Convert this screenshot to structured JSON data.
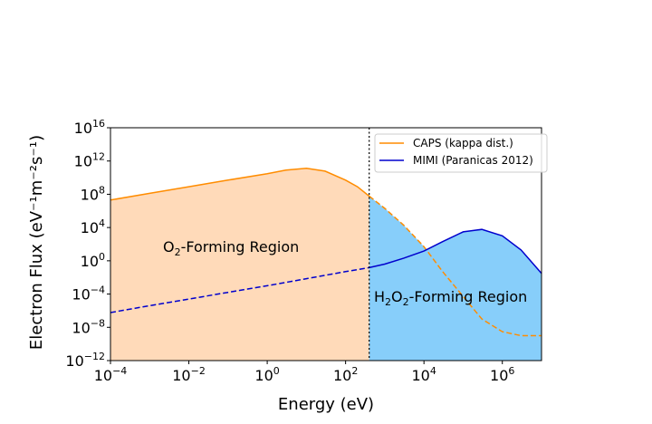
{
  "chart_data": {
    "type": "line",
    "xlabel": "Energy (eV)",
    "ylabel": "Electron Flux (eV⁻¹m⁻²s⁻¹)",
    "x_scale": "log",
    "y_scale": "log",
    "xlim": [
      0.0001,
      10000000
    ],
    "ylim": [
      1e-12,
      1e+16
    ],
    "x_ticks": [
      {
        "value": 0.0001,
        "base": "10",
        "exp": "−4"
      },
      {
        "value": 0.01,
        "base": "10",
        "exp": "−2"
      },
      {
        "value": 1,
        "base": "10",
        "exp": "0"
      },
      {
        "value": 100,
        "base": "10",
        "exp": "2"
      },
      {
        "value": 10000,
        "base": "10",
        "exp": "4"
      },
      {
        "value": 1000000,
        "base": "10",
        "exp": "6"
      }
    ],
    "y_ticks": [
      {
        "value": 1e+16,
        "base": "10",
        "exp": "16"
      },
      {
        "value": 1000000000000.0,
        "base": "10",
        "exp": "12"
      },
      {
        "value": 100000000.0,
        "base": "10",
        "exp": "8"
      },
      {
        "value": 10000.0,
        "base": "10",
        "exp": "4"
      },
      {
        "value": 1,
        "base": "10",
        "exp": "0"
      },
      {
        "value": 0.0001,
        "base": "10",
        "exp": "−4"
      },
      {
        "value": 1e-08,
        "base": "10",
        "exp": "−8"
      },
      {
        "value": 1e-12,
        "base": "10",
        "exp": "−12"
      }
    ],
    "threshold_energy": 400,
    "series": [
      {
        "name": "CAPS (kappa dist.)",
        "color": "#ff8c00",
        "x": [
          0.0001,
          0.001,
          0.01,
          0.1,
          1,
          3,
          10,
          30,
          100,
          200,
          400,
          1000,
          3000,
          10000,
          30000,
          100000,
          300000,
          1000000,
          3000000,
          10000000
        ],
        "y": [
          20000000.0,
          130000000.0,
          800000000.0,
          5000000000.0,
          30000000000.0,
          80000000000.0,
          130000000000.0,
          60000000000.0,
          5000000000.0,
          800000000.0,
          60000000.0,
          2000000.0,
          20000.0,
          50,
          0.05,
          5e-05,
          1e-07,
          3e-09,
          1e-09,
          1e-09
        ]
      },
      {
        "name": "MIMI (Paranicas 2012)",
        "color": "#0000cd",
        "x": [
          0.0001,
          0.001,
          0.01,
          0.1,
          1,
          10,
          100,
          400,
          1000,
          3000,
          10000,
          30000,
          100000,
          300000,
          1000000,
          3000000,
          10000000
        ],
        "y": [
          6e-07,
          4e-06,
          2.5e-05,
          0.00016,
          0.001,
          0.007,
          0.05,
          0.15,
          0.4,
          2,
          15,
          200,
          3000,
          6000,
          1000,
          20,
          0.03
        ]
      }
    ],
    "regions": [
      {
        "label_main": "O",
        "label_sub": "2",
        "label_rest": "-Forming Region",
        "fill": "#ffdab9"
      },
      {
        "label_h": "H",
        "label_h_sub": "2",
        "label_o": "O",
        "label_o_sub": "2",
        "label_rest": "-Forming Region",
        "fill": "#87cefa"
      }
    ],
    "legend_placement": "top-right",
    "grid": false
  }
}
